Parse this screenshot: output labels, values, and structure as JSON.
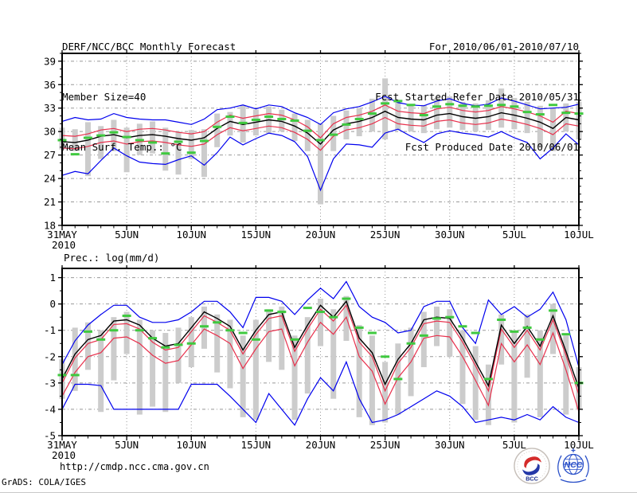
{
  "header": {
    "title": "DERF/NCC/BCC Monthly Forecast",
    "member_size": "Member Size=40",
    "for_range": "For 2010/06/01-2010/07/10",
    "fcst_started": "Fcst Started Refer Date 2010/05/31",
    "fcst_produced": "Fcst Produced Date 2010/06/01"
  },
  "footer": {
    "url": "http://cmdp.ncc.cma.gov.cn",
    "grads_credit": "GrADS: COLA/IGES",
    "logos": [
      {
        "name": "bcc-logo",
        "label": "BCC"
      },
      {
        "name": "ncc-logo",
        "label": "NCC"
      }
    ]
  },
  "colors": {
    "blue": "#0000ee",
    "red": "#e8304c",
    "black": "#000000",
    "green": "#3fc93f",
    "bar": "#cccccc",
    "grid": "#999999"
  },
  "chart_data": [
    {
      "type": "line",
      "title": "Mean Surf. Temp.: °C",
      "days": 41,
      "x_tick_positions": [
        0,
        5,
        10,
        15,
        20,
        25,
        30,
        35,
        40
      ],
      "x_tick_labels": [
        "31MAY",
        "5JUN",
        "10JUN",
        "15JUN",
        "20JUN",
        "25JUN",
        "30JUN",
        "5JUL",
        "10JUL"
      ],
      "x_sub_label": "2010",
      "ylim": [
        18,
        40
      ],
      "yticks": [
        18,
        21,
        24,
        27,
        30,
        33,
        36,
        39
      ],
      "y_minor": 1,
      "series": [
        {
          "name": "ensemble-max",
          "color": "blue",
          "values": [
            31.3,
            31.8,
            31.5,
            31.6,
            32.3,
            31.8,
            31.6,
            31.5,
            31.5,
            31.2,
            30.9,
            31.6,
            32.8,
            33.0,
            33.4,
            32.9,
            33.4,
            33.2,
            32.4,
            31.8,
            30.9,
            32.4,
            32.9,
            33.2,
            33.8,
            34.5,
            33.7,
            33.4,
            33.3,
            33.9,
            34.2,
            33.6,
            33.3,
            33.5,
            34.3,
            33.9,
            33.4,
            32.9,
            33.0,
            33.1,
            33.5
          ]
        },
        {
          "name": "upper-bound",
          "color": "red",
          "values": [
            29.5,
            29.4,
            29.7,
            30.2,
            30.4,
            30.0,
            30.3,
            30.4,
            30.2,
            29.9,
            29.7,
            30.0,
            31.2,
            32.1,
            31.7,
            32.0,
            32.3,
            32.1,
            31.5,
            30.6,
            29.2,
            31.0,
            31.8,
            32.1,
            32.6,
            33.4,
            32.6,
            32.4,
            32.3,
            32.9,
            33.1,
            32.7,
            32.5,
            32.7,
            33.2,
            32.9,
            32.5,
            32.0,
            31.2,
            32.6,
            32.3
          ]
        },
        {
          "name": "ensemble-mean",
          "color": "black",
          "values": [
            28.7,
            28.6,
            28.9,
            29.4,
            29.6,
            29.2,
            29.5,
            29.6,
            29.4,
            29.1,
            28.9,
            29.2,
            30.4,
            31.3,
            30.9,
            31.2,
            31.5,
            31.3,
            30.7,
            29.8,
            28.4,
            30.2,
            31.0,
            31.3,
            31.8,
            32.6,
            31.8,
            31.6,
            31.5,
            32.1,
            32.3,
            31.9,
            31.7,
            31.9,
            32.4,
            32.1,
            31.7,
            31.2,
            30.4,
            31.8,
            31.5
          ]
        },
        {
          "name": "lower-bound",
          "color": "red",
          "values": [
            27.9,
            27.8,
            28.1,
            28.6,
            28.8,
            28.4,
            28.7,
            28.8,
            28.6,
            28.3,
            28.1,
            28.4,
            29.6,
            30.5,
            30.1,
            30.4,
            30.7,
            30.5,
            29.9,
            29.0,
            27.6,
            29.4,
            30.2,
            30.5,
            31.0,
            31.8,
            31.0,
            30.8,
            30.7,
            31.3,
            31.5,
            31.1,
            30.9,
            31.1,
            31.6,
            31.3,
            30.9,
            30.4,
            29.6,
            31.0,
            30.7
          ]
        },
        {
          "name": "ensemble-min",
          "color": "blue",
          "values": [
            24.4,
            24.9,
            24.6,
            26.3,
            27.9,
            26.9,
            26.1,
            25.9,
            25.8,
            26.4,
            26.9,
            25.7,
            27.3,
            29.3,
            28.3,
            29.1,
            29.8,
            29.5,
            28.7,
            26.8,
            22.5,
            26.5,
            28.4,
            28.3,
            28.0,
            29.8,
            30.3,
            29.4,
            28.6,
            29.7,
            30.1,
            29.8,
            29.6,
            29.3,
            30.0,
            29.2,
            28.6,
            26.5,
            27.9,
            29.7,
            28.3
          ]
        }
      ],
      "obs": {
        "name": "observation",
        "color": "green",
        "values": [
          28.9,
          27.1,
          29.2,
          29.5,
          29.9,
          29.3,
          28.9,
          28.6,
          27.2,
          28.7,
          27.3,
          28.8,
          30.6,
          31.9,
          31.1,
          31.5,
          31.9,
          31.6,
          31.4,
          30.1,
          28.9,
          29.6,
          30.9,
          31.6,
          32.3,
          33.6,
          33.9,
          33.4,
          32.1,
          33.2,
          33.5,
          33.3,
          33.2,
          33.3,
          33.4,
          33.2,
          32.5,
          32.2,
          33.4,
          32.4,
          32.3
        ]
      },
      "bars": [
        [
          27.7,
          30.5
        ],
        [
          27.5,
          30.3
        ],
        [
          24.3,
          31.2
        ],
        [
          26.5,
          30.7
        ],
        [
          27.5,
          31.5
        ],
        [
          24.8,
          30.5
        ],
        [
          27.0,
          31.0
        ],
        [
          27.2,
          31.3
        ],
        [
          25.0,
          30.5
        ],
        [
          24.5,
          30.0
        ],
        [
          26.5,
          30.2
        ],
        [
          24.2,
          30.3
        ],
        [
          28.0,
          32.3
        ],
        [
          29.5,
          32.5
        ],
        [
          28.6,
          33.4
        ],
        [
          29.5,
          32.8
        ],
        [
          29.8,
          33.2
        ],
        [
          30.0,
          32.8
        ],
        [
          28.8,
          32.3
        ],
        [
          27.5,
          31.5
        ],
        [
          20.7,
          31.0
        ],
        [
          27.5,
          32.0
        ],
        [
          29.0,
          32.7
        ],
        [
          29.4,
          33.0
        ],
        [
          30.0,
          34.2
        ],
        [
          29.0,
          36.8
        ],
        [
          30.2,
          34.0
        ],
        [
          30.0,
          33.5
        ],
        [
          29.8,
          33.4
        ],
        [
          30.3,
          34.3
        ],
        [
          30.5,
          34.5
        ],
        [
          30.2,
          33.8
        ],
        [
          30.0,
          33.6
        ],
        [
          30.2,
          34.0
        ],
        [
          30.5,
          35.5
        ],
        [
          30.3,
          34.3
        ],
        [
          29.8,
          33.8
        ],
        [
          28.0,
          33.3
        ],
        [
          27.5,
          33.0
        ],
        [
          30.0,
          33.6
        ],
        [
          29.0,
          33.8
        ]
      ]
    },
    {
      "type": "line",
      "title": "Prec.: log(mm/d)",
      "days": 41,
      "x_tick_positions": [
        0,
        5,
        10,
        15,
        20,
        25,
        30,
        35,
        40
      ],
      "x_tick_labels": [
        "31MAY",
        "5JUN",
        "10JUN",
        "15JUN",
        "20JUN",
        "25JUN",
        "30JUN",
        "5JUL",
        "10JUL"
      ],
      "x_sub_label": "2010",
      "ylim": [
        -5,
        1.35
      ],
      "yticks": [
        -5,
        -4,
        -3,
        -2,
        -1,
        0,
        1
      ],
      "y_minor": 0.5,
      "series": [
        {
          "name": "ensemble-max",
          "color": "blue",
          "values": [
            -2.3,
            -1.4,
            -0.8,
            -0.4,
            -0.05,
            -0.05,
            -0.5,
            -0.7,
            -0.7,
            -0.6,
            -0.3,
            0.1,
            0.1,
            -0.3,
            -0.9,
            0.25,
            0.25,
            0.1,
            -0.4,
            0.15,
            0.6,
            0.2,
            0.85,
            -0.1,
            -0.5,
            -0.7,
            -1.1,
            -1.0,
            -0.1,
            0.1,
            0.1,
            -0.9,
            -1.5,
            0.15,
            -0.4,
            -0.1,
            -0.5,
            -0.2,
            0.45,
            -0.6,
            -2.4
          ]
        },
        {
          "name": "upper-bound",
          "color": "red",
          "values": [
            -3.0,
            -2.05,
            -1.5,
            -1.35,
            -0.78,
            -0.75,
            -0.95,
            -1.45,
            -1.75,
            -1.65,
            -1.05,
            -0.45,
            -0.7,
            -1.0,
            -1.9,
            -1.15,
            -0.55,
            -0.45,
            -1.8,
            -0.95,
            -0.2,
            -0.65,
            -0.05,
            -1.45,
            -2.0,
            -3.3,
            -2.25,
            -1.65,
            -0.75,
            -0.65,
            -0.7,
            -1.45,
            -2.35,
            -3.3,
            -0.95,
            -1.65,
            -1.0,
            -1.75,
            -0.6,
            -1.95,
            -3.45
          ]
        },
        {
          "name": "ensemble-mean",
          "color": "black",
          "values": [
            -2.85,
            -1.9,
            -1.35,
            -1.2,
            -0.65,
            -0.6,
            -0.8,
            -1.3,
            -1.6,
            -1.5,
            -0.9,
            -0.3,
            -0.55,
            -0.85,
            -1.75,
            -1.0,
            -0.4,
            -0.3,
            -1.65,
            -0.8,
            -0.05,
            -0.5,
            0.1,
            -1.3,
            -1.85,
            -3.05,
            -2.1,
            -1.5,
            -0.6,
            -0.5,
            -0.55,
            -1.3,
            -2.2,
            -3.1,
            -0.8,
            -1.5,
            -0.85,
            -1.6,
            -0.45,
            -1.8,
            -3.2
          ]
        },
        {
          "name": "lower-bound",
          "color": "red",
          "values": [
            -3.5,
            -2.6,
            -2.0,
            -1.85,
            -1.3,
            -1.25,
            -1.5,
            -1.95,
            -2.25,
            -2.15,
            -1.55,
            -0.95,
            -1.2,
            -1.5,
            -2.45,
            -1.7,
            -1.05,
            -0.95,
            -2.35,
            -1.45,
            -0.7,
            -1.15,
            -0.5,
            -2.0,
            -2.55,
            -3.8,
            -2.8,
            -2.2,
            -1.3,
            -1.2,
            -1.25,
            -2.0,
            -2.9,
            -3.85,
            -1.5,
            -2.2,
            -1.55,
            -2.3,
            -1.1,
            -2.5,
            -4.1
          ]
        },
        {
          "name": "ensemble-min",
          "color": "blue",
          "values": [
            -4.0,
            -3.05,
            -3.05,
            -3.1,
            -4.0,
            -4.0,
            -4.0,
            -4.0,
            -4.0,
            -4.0,
            -3.05,
            -3.05,
            -3.05,
            -3.5,
            -4.0,
            -4.5,
            -3.4,
            -4.0,
            -4.6,
            -3.6,
            -2.8,
            -3.3,
            -2.2,
            -3.6,
            -4.5,
            -4.4,
            -4.2,
            -3.9,
            -3.6,
            -3.3,
            -3.5,
            -3.9,
            -4.5,
            -4.4,
            -4.3,
            -4.4,
            -4.2,
            -4.4,
            -3.9,
            -4.3,
            -4.5
          ]
        }
      ],
      "obs": {
        "name": "observation",
        "color": "green",
        "values": [
          -2.7,
          -2.7,
          -1.05,
          -1.35,
          -1.0,
          -0.45,
          -1.0,
          -1.3,
          -1.65,
          -1.55,
          -1.5,
          -0.85,
          -0.7,
          -1.0,
          -1.1,
          -1.35,
          -0.25,
          -0.3,
          -1.35,
          -0.15,
          -0.3,
          -0.5,
          0.2,
          -0.9,
          -1.1,
          -2.0,
          -2.85,
          -1.5,
          -1.2,
          -0.55,
          -0.5,
          -0.85,
          -1.1,
          -2.85,
          -0.6,
          -1.05,
          -0.9,
          -1.35,
          -0.25,
          -1.15,
          -3.0
        ]
      },
      "bars": [
        [
          -3.6,
          -2.1
        ],
        [
          -3.3,
          -0.9
        ],
        [
          -2.5,
          -0.7
        ],
        [
          -4.1,
          -1.0
        ],
        [
          -2.9,
          -0.5
        ],
        [
          -1.9,
          -0.3
        ],
        [
          -4.2,
          -0.6
        ],
        [
          -3.9,
          -1.0
        ],
        [
          -4.1,
          -1.1
        ],
        [
          -3.0,
          -0.9
        ],
        [
          -2.4,
          -0.5
        ],
        [
          -1.7,
          -0.1
        ],
        [
          -2.6,
          -0.4
        ],
        [
          -3.2,
          -0.6
        ],
        [
          -4.3,
          -1.2
        ],
        [
          -4.4,
          -0.6
        ],
        [
          -2.2,
          -0.2
        ],
        [
          -2.5,
          -0.1
        ],
        [
          -4.4,
          -1.2
        ],
        [
          -3.4,
          -0.5
        ],
        [
          -1.6,
          0.2
        ],
        [
          -3.6,
          -0.2
        ],
        [
          -1.4,
          0.3
        ],
        [
          -4.3,
          -0.8
        ],
        [
          -4.6,
          -1.2
        ],
        [
          -4.5,
          -2.2
        ],
        [
          -4.2,
          -1.5
        ],
        [
          -3.5,
          -0.9
        ],
        [
          -2.4,
          -0.3
        ],
        [
          -1.6,
          -0.1
        ],
        [
          -2.0,
          -0.2
        ],
        [
          -3.8,
          -1.0
        ],
        [
          -4.4,
          -1.6
        ],
        [
          -4.6,
          -2.3
        ],
        [
          -2.3,
          -0.4
        ],
        [
          -4.5,
          -1.0
        ],
        [
          -2.8,
          -0.4
        ],
        [
          -4.3,
          -1.0
        ],
        [
          -1.9,
          0.0
        ],
        [
          -4.2,
          -1.2
        ],
        [
          -4.0,
          -2.4
        ]
      ]
    }
  ]
}
